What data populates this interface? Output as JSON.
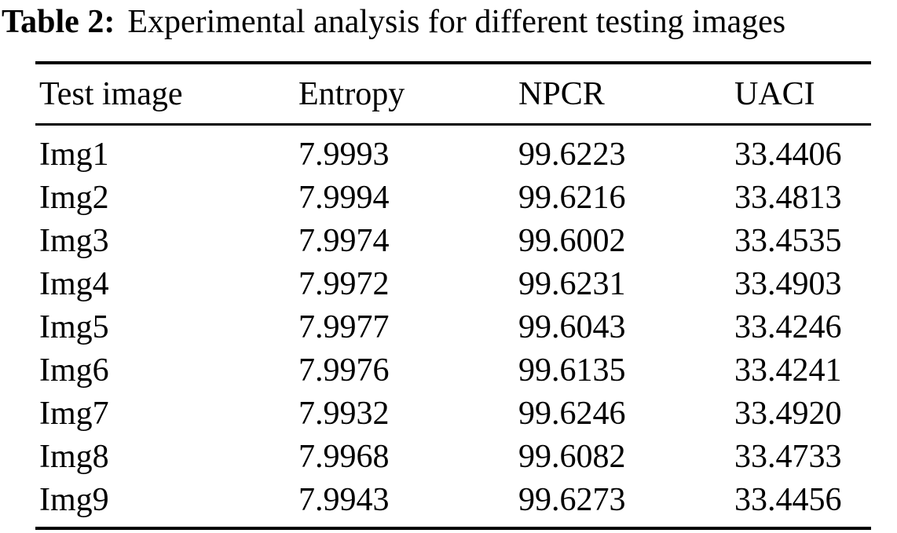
{
  "caption": {
    "label": "Table 2:",
    "text": "Experimental analysis for different testing images"
  },
  "table": {
    "headers": [
      "Test image",
      "Entropy",
      "NPCR",
      "UACI"
    ],
    "rows": [
      [
        "Img1",
        "7.9993",
        "99.6223",
        "33.4406"
      ],
      [
        "Img2",
        "7.9994",
        "99.6216",
        "33.4813"
      ],
      [
        "Img3",
        "7.9974",
        "99.6002",
        "33.4535"
      ],
      [
        "Img4",
        "7.9972",
        "99.6231",
        "33.4903"
      ],
      [
        "Img5",
        "7.9977",
        "99.6043",
        "33.4246"
      ],
      [
        "Img6",
        "7.9976",
        "99.6135",
        "33.4241"
      ],
      [
        "Img7",
        "7.9932",
        "99.6246",
        "33.4920"
      ],
      [
        "Img8",
        "7.9968",
        "99.6082",
        "33.4733"
      ],
      [
        "Img9",
        "7.9943",
        "99.6273",
        "33.4456"
      ]
    ]
  },
  "colors": {
    "text": "#000000",
    "background": "#ffffff",
    "rule": "#000000"
  }
}
